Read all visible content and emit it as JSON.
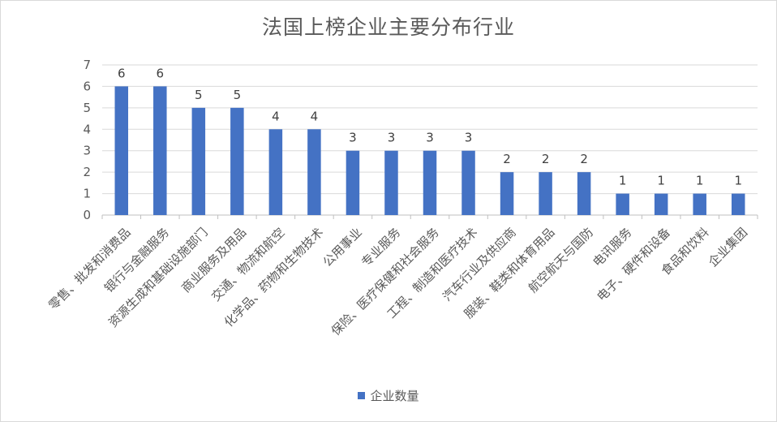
{
  "chart_data": {
    "type": "bar",
    "title": "法国上榜企业主要分布行业",
    "categories": [
      "零售、批发和消费品",
      "银行与金融服务",
      "资源生成和基础设施部门",
      "商业服务及用品",
      "交通、物流和航空",
      "化学品、药物和生物技术",
      "公用事业",
      "专业服务",
      "保险、医疗保健和社会服务",
      "工程、制造和医疗技术",
      "汽车行业及供应商",
      "服装、鞋类和体育用品",
      "航空航天与国防",
      "电讯服务",
      "电子、硬件和设备",
      "食品和饮料",
      "企业集团"
    ],
    "series": [
      {
        "name": "企业数量",
        "values": [
          6,
          6,
          5,
          5,
          4,
          4,
          3,
          3,
          3,
          3,
          2,
          2,
          2,
          1,
          1,
          1,
          1
        ]
      }
    ],
    "ylim": [
      0,
      7
    ],
    "yticks": [
      0,
      1,
      2,
      3,
      4,
      5,
      6,
      7
    ],
    "grid": true,
    "legend": "bottom",
    "bar_color": "#4472c4"
  }
}
